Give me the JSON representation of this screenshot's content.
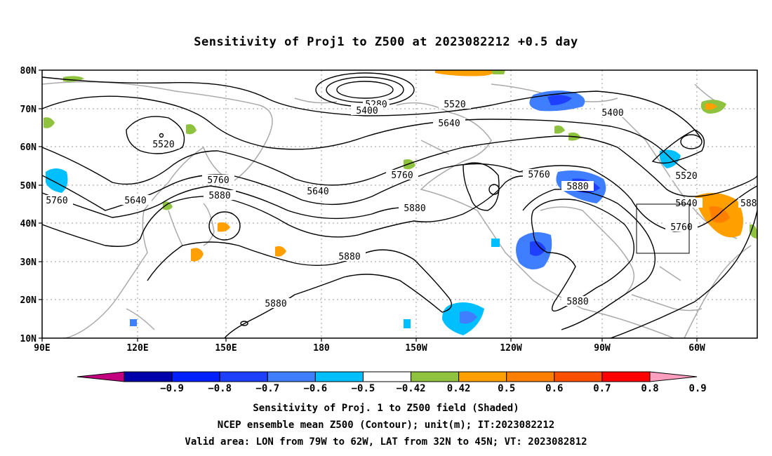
{
  "title": "Sensitivity of Proj1 to Z500 at 2023082212 +0.5 day",
  "lat_labels": [
    "80N",
    "70N",
    "60N",
    "50N",
    "40N",
    "30N",
    "20N",
    "10N"
  ],
  "lon_labels": [
    "90E",
    "120E",
    "150E",
    "180",
    "150W",
    "120W",
    "90W",
    "60W"
  ],
  "contour_labels": [
    "5280",
    "5400",
    "5520",
    "5400",
    "5520",
    "5640",
    "5640",
    "5760",
    "5760",
    "5880",
    "5640",
    "5760",
    "5880",
    "5880",
    "5760",
    "5520",
    "5640",
    "5760",
    "5880",
    "5880",
    "5880",
    "588"
  ],
  "colorbar": {
    "labels": [
      "-0.9",
      "-0.8",
      "-0.7",
      "-0.6",
      "-0.5",
      "-0.42",
      "0.42",
      "0.5",
      "0.6",
      "0.7",
      "0.8",
      "0.9"
    ],
    "colors": [
      "#c0007f",
      "#0000aa",
      "#0020ff",
      "#1f3fff",
      "#3f7fff",
      "#00bfff",
      "#ffffff",
      "#8fc23f",
      "#ff9f00",
      "#ff7f00",
      "#ff4f00",
      "#ff0000",
      "#ff9fc0"
    ]
  },
  "captions": [
    "Sensitivity of Proj. 1 to Z500 field (Shaded)",
    "NCEP ensemble mean Z500 (Contour); unit(m); IT:2023082212",
    "Valid area: LON from 79W to 62W, LAT from 32N to 45N; VT: 2023082812"
  ]
}
